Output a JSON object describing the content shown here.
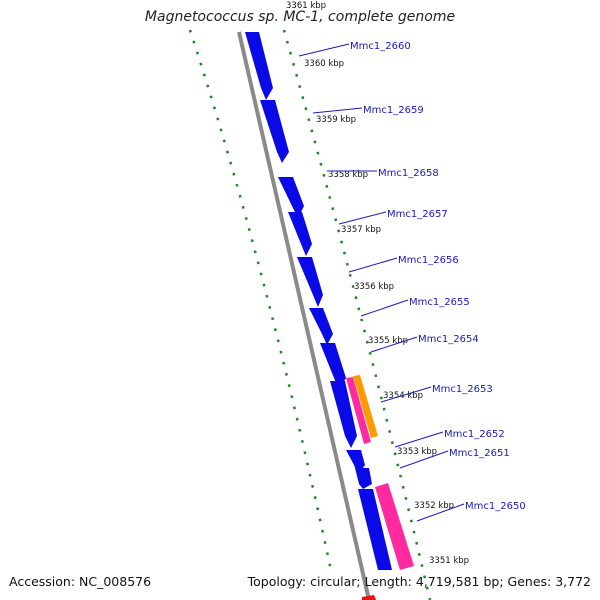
{
  "title": "Magnetococcus sp. MC-1, complete genome",
  "footer": {
    "accession": "Accession: NC_008576",
    "summary": "Topology: circular; Length: 4,719,581 bp; Genes: 3,772"
  },
  "colors": {
    "cds": "#0a0ae6",
    "rna_pink": "#ff2aa0",
    "rna_orange": "#ff9a00",
    "backbone": "#8a8a8a",
    "tick_dots": "#1a8a1a",
    "label": "#1a1ab8"
  },
  "ticks": [
    "3361 kbp",
    "3360 kbp",
    "3359 kbp",
    "3358 kbp",
    "3357 kbp",
    "3356 kbp",
    "3355 kbp",
    "3354 kbp",
    "3353 kbp",
    "3352 kbp",
    "3351 kbp"
  ],
  "genes": [
    "Mmc1_2660",
    "Mmc1_2659",
    "Mmc1_2658",
    "Mmc1_2657",
    "Mmc1_2656",
    "Mmc1_2655",
    "Mmc1_2654",
    "Mmc1_2653",
    "Mmc1_2652",
    "Mmc1_2651",
    "Mmc1_2650"
  ]
}
